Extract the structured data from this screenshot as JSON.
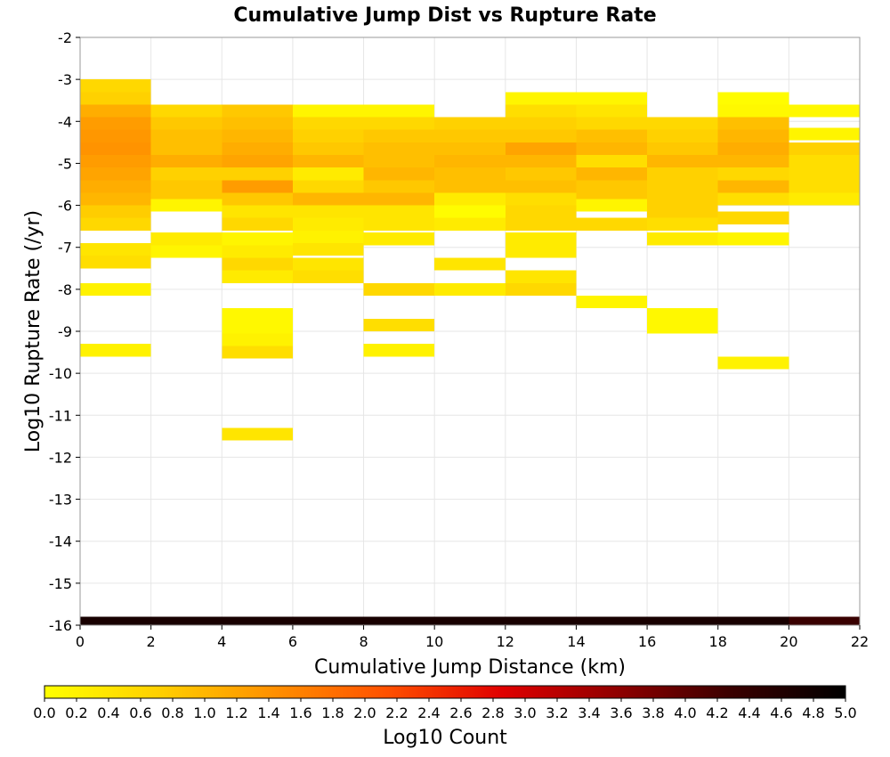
{
  "chart_data": {
    "type": "heatmap",
    "title": "Cumulative Jump Dist vs Rupture Rate",
    "xlabel": "Cumulative Jump Distance (km)",
    "ylabel": "Log10 Rupture Rate (/yr)",
    "xlim": [
      0,
      22
    ],
    "ylim": [
      -16,
      -2
    ],
    "x_ticks": [
      "0",
      "2",
      "4",
      "6",
      "8",
      "10",
      "12",
      "14",
      "16",
      "18",
      "20",
      "22"
    ],
    "y_ticks": [
      "-2",
      "-3",
      "-4",
      "-5",
      "-6",
      "-7",
      "-8",
      "-9",
      "-10",
      "-11",
      "-12",
      "-13",
      "-14",
      "-15",
      "-16"
    ],
    "grid": true,
    "x_bin_width": 2,
    "y_bin_height": 0.3,
    "colorbar": {
      "label": "Log10 Count",
      "range": [
        0,
        5
      ],
      "ticks": [
        "0.0",
        "0.2",
        "0.4",
        "0.6",
        "0.8",
        "1.0",
        "1.2",
        "1.4",
        "1.6",
        "1.8",
        "2.0",
        "2.2",
        "2.4",
        "2.6",
        "2.8",
        "3.0",
        "3.2",
        "3.4",
        "3.6",
        "3.8",
        "4.0",
        "4.2",
        "4.4",
        "4.6",
        "4.8",
        "5.0"
      ],
      "colors": [
        "#ffff00",
        "#ffd000",
        "#ff9000",
        "#ff5000",
        "#e00000",
        "#900000",
        "#3a0000",
        "#000000"
      ]
    },
    "cells": [
      [
        1,
        -3.15,
        0.6
      ],
      [
        1,
        -3.45,
        0.7
      ],
      [
        1,
        -3.75,
        1.1
      ],
      [
        1,
        -4.05,
        1.3
      ],
      [
        1,
        -4.35,
        1.35
      ],
      [
        1,
        -4.65,
        1.4
      ],
      [
        1,
        -4.95,
        1.3
      ],
      [
        1,
        -5.25,
        1.2
      ],
      [
        1,
        -5.55,
        1.1
      ],
      [
        1,
        -5.85,
        1.0
      ],
      [
        1,
        -6.15,
        0.75
      ],
      [
        1,
        -6.45,
        0.6
      ],
      [
        1,
        -7.05,
        0.4
      ],
      [
        1,
        -7.35,
        0.5
      ],
      [
        1,
        -8.0,
        0.2
      ],
      [
        1,
        -9.45,
        0.2
      ],
      [
        1,
        -15.95,
        4.7
      ],
      [
        3,
        -3.75,
        0.6
      ],
      [
        3,
        -4.05,
        0.8
      ],
      [
        3,
        -4.35,
        0.9
      ],
      [
        3,
        -4.65,
        0.9
      ],
      [
        3,
        -4.95,
        1.1
      ],
      [
        3,
        -5.25,
        0.7
      ],
      [
        3,
        -5.55,
        0.8
      ],
      [
        3,
        -5.85,
        0.8
      ],
      [
        3,
        -6.0,
        0.15
      ],
      [
        3,
        -6.8,
        0.3
      ],
      [
        3,
        -7.1,
        0.15
      ],
      [
        3,
        -15.95,
        4.7
      ],
      [
        5,
        -3.75,
        0.8
      ],
      [
        5,
        -4.05,
        0.9
      ],
      [
        5,
        -4.35,
        1.0
      ],
      [
        5,
        -4.65,
        1.1
      ],
      [
        5,
        -4.95,
        1.2
      ],
      [
        5,
        -5.25,
        0.7
      ],
      [
        5,
        -5.55,
        1.3
      ],
      [
        5,
        -5.85,
        0.8
      ],
      [
        5,
        -6.15,
        0.4
      ],
      [
        5,
        -6.45,
        0.6
      ],
      [
        5,
        -6.8,
        0.15
      ],
      [
        5,
        -7.1,
        0.3
      ],
      [
        5,
        -7.4,
        0.6
      ],
      [
        5,
        -7.7,
        0.3
      ],
      [
        5,
        -8.6,
        0.1
      ],
      [
        5,
        -8.9,
        0.1
      ],
      [
        5,
        -9.2,
        0.2
      ],
      [
        5,
        -9.5,
        0.5
      ],
      [
        5,
        -11.45,
        0.4
      ],
      [
        5,
        -15.95,
        4.7
      ],
      [
        7,
        -3.75,
        0.15
      ],
      [
        7,
        -4.05,
        0.6
      ],
      [
        7,
        -4.35,
        0.7
      ],
      [
        7,
        -4.65,
        0.8
      ],
      [
        7,
        -4.95,
        1.0
      ],
      [
        7,
        -5.25,
        0.3
      ],
      [
        7,
        -5.55,
        0.6
      ],
      [
        7,
        -5.85,
        1.0
      ],
      [
        7,
        -6.15,
        0.4
      ],
      [
        7,
        -6.45,
        0.3
      ],
      [
        7,
        -6.75,
        0.2
      ],
      [
        7,
        -7.05,
        0.4
      ],
      [
        7,
        -7.4,
        0.4
      ],
      [
        7,
        -7.7,
        0.5
      ],
      [
        7,
        -15.95,
        4.7
      ],
      [
        9,
        -3.75,
        0.15
      ],
      [
        9,
        -4.05,
        0.6
      ],
      [
        9,
        -4.35,
        0.8
      ],
      [
        9,
        -4.65,
        0.9
      ],
      [
        9,
        -4.95,
        0.9
      ],
      [
        9,
        -5.25,
        1.0
      ],
      [
        9,
        -5.55,
        0.8
      ],
      [
        9,
        -5.85,
        1.0
      ],
      [
        9,
        -6.15,
        0.4
      ],
      [
        9,
        -6.45,
        0.4
      ],
      [
        9,
        -6.8,
        0.3
      ],
      [
        9,
        -8.0,
        0.6
      ],
      [
        9,
        -8.85,
        0.5
      ],
      [
        9,
        -9.45,
        0.2
      ],
      [
        9,
        -15.95,
        4.7
      ],
      [
        11,
        -4.05,
        0.7
      ],
      [
        11,
        -4.35,
        0.8
      ],
      [
        11,
        -4.65,
        0.9
      ],
      [
        11,
        -4.95,
        1.0
      ],
      [
        11,
        -5.25,
        0.9
      ],
      [
        11,
        -5.55,
        0.9
      ],
      [
        11,
        -5.85,
        0.3
      ],
      [
        11,
        -6.15,
        0.05
      ],
      [
        11,
        -6.45,
        0.3
      ],
      [
        11,
        -7.4,
        0.4
      ],
      [
        11,
        -8.0,
        0.3
      ],
      [
        11,
        -15.95,
        4.7
      ],
      [
        13,
        -3.45,
        0.15
      ],
      [
        13,
        -3.75,
        0.5
      ],
      [
        13,
        -4.05,
        0.7
      ],
      [
        13,
        -4.35,
        0.8
      ],
      [
        13,
        -4.65,
        1.2
      ],
      [
        13,
        -4.95,
        1.0
      ],
      [
        13,
        -5.25,
        0.8
      ],
      [
        13,
        -5.55,
        0.9
      ],
      [
        13,
        -5.85,
        0.5
      ],
      [
        13,
        -6.15,
        0.6
      ],
      [
        13,
        -6.45,
        0.6
      ],
      [
        13,
        -6.8,
        0.3
      ],
      [
        13,
        -7.1,
        0.3
      ],
      [
        13,
        -7.7,
        0.4
      ],
      [
        13,
        -8.0,
        0.6
      ],
      [
        13,
        -15.95,
        4.7
      ],
      [
        15,
        -3.45,
        0.15
      ],
      [
        15,
        -3.75,
        0.4
      ],
      [
        15,
        -4.05,
        0.6
      ],
      [
        15,
        -4.35,
        0.9
      ],
      [
        15,
        -4.65,
        1.0
      ],
      [
        15,
        -4.95,
        0.5
      ],
      [
        15,
        -5.25,
        1.0
      ],
      [
        15,
        -5.55,
        0.8
      ],
      [
        15,
        -5.85,
        0.8
      ],
      [
        15,
        -6.0,
        0.15
      ],
      [
        15,
        -6.45,
        0.6
      ],
      [
        15,
        -8.3,
        0.15
      ],
      [
        15,
        -15.95,
        4.7
      ],
      [
        17,
        -4.05,
        0.6
      ],
      [
        17,
        -4.35,
        0.7
      ],
      [
        17,
        -4.65,
        0.8
      ],
      [
        17,
        -4.95,
        1.0
      ],
      [
        17,
        -5.25,
        0.7
      ],
      [
        17,
        -5.55,
        0.7
      ],
      [
        17,
        -5.85,
        0.7
      ],
      [
        17,
        -6.15,
        0.7
      ],
      [
        17,
        -6.45,
        0.5
      ],
      [
        17,
        -6.8,
        0.3
      ],
      [
        17,
        -8.6,
        0.1
      ],
      [
        17,
        -8.9,
        0.1
      ],
      [
        17,
        -15.95,
        4.7
      ],
      [
        19,
        -3.45,
        0.05
      ],
      [
        19,
        -3.75,
        0.1
      ],
      [
        19,
        -4.05,
        0.9
      ],
      [
        19,
        -4.35,
        1.0
      ],
      [
        19,
        -4.65,
        1.1
      ],
      [
        19,
        -4.95,
        1.0
      ],
      [
        19,
        -5.25,
        0.6
      ],
      [
        19,
        -5.55,
        1.0
      ],
      [
        19,
        -5.85,
        0.5
      ],
      [
        19,
        -6.3,
        0.6
      ],
      [
        19,
        -6.8,
        0.15
      ],
      [
        19,
        -9.75,
        0.2
      ],
      [
        19,
        -15.95,
        4.7
      ],
      [
        21,
        -3.75,
        0.1
      ],
      [
        21,
        -4.3,
        0.15
      ],
      [
        21,
        -4.65,
        0.7
      ],
      [
        21,
        -4.95,
        0.5
      ],
      [
        21,
        -5.25,
        0.5
      ],
      [
        21,
        -5.55,
        0.5
      ],
      [
        21,
        -5.85,
        0.3
      ],
      [
        21,
        -15.95,
        4.3
      ]
    ]
  }
}
